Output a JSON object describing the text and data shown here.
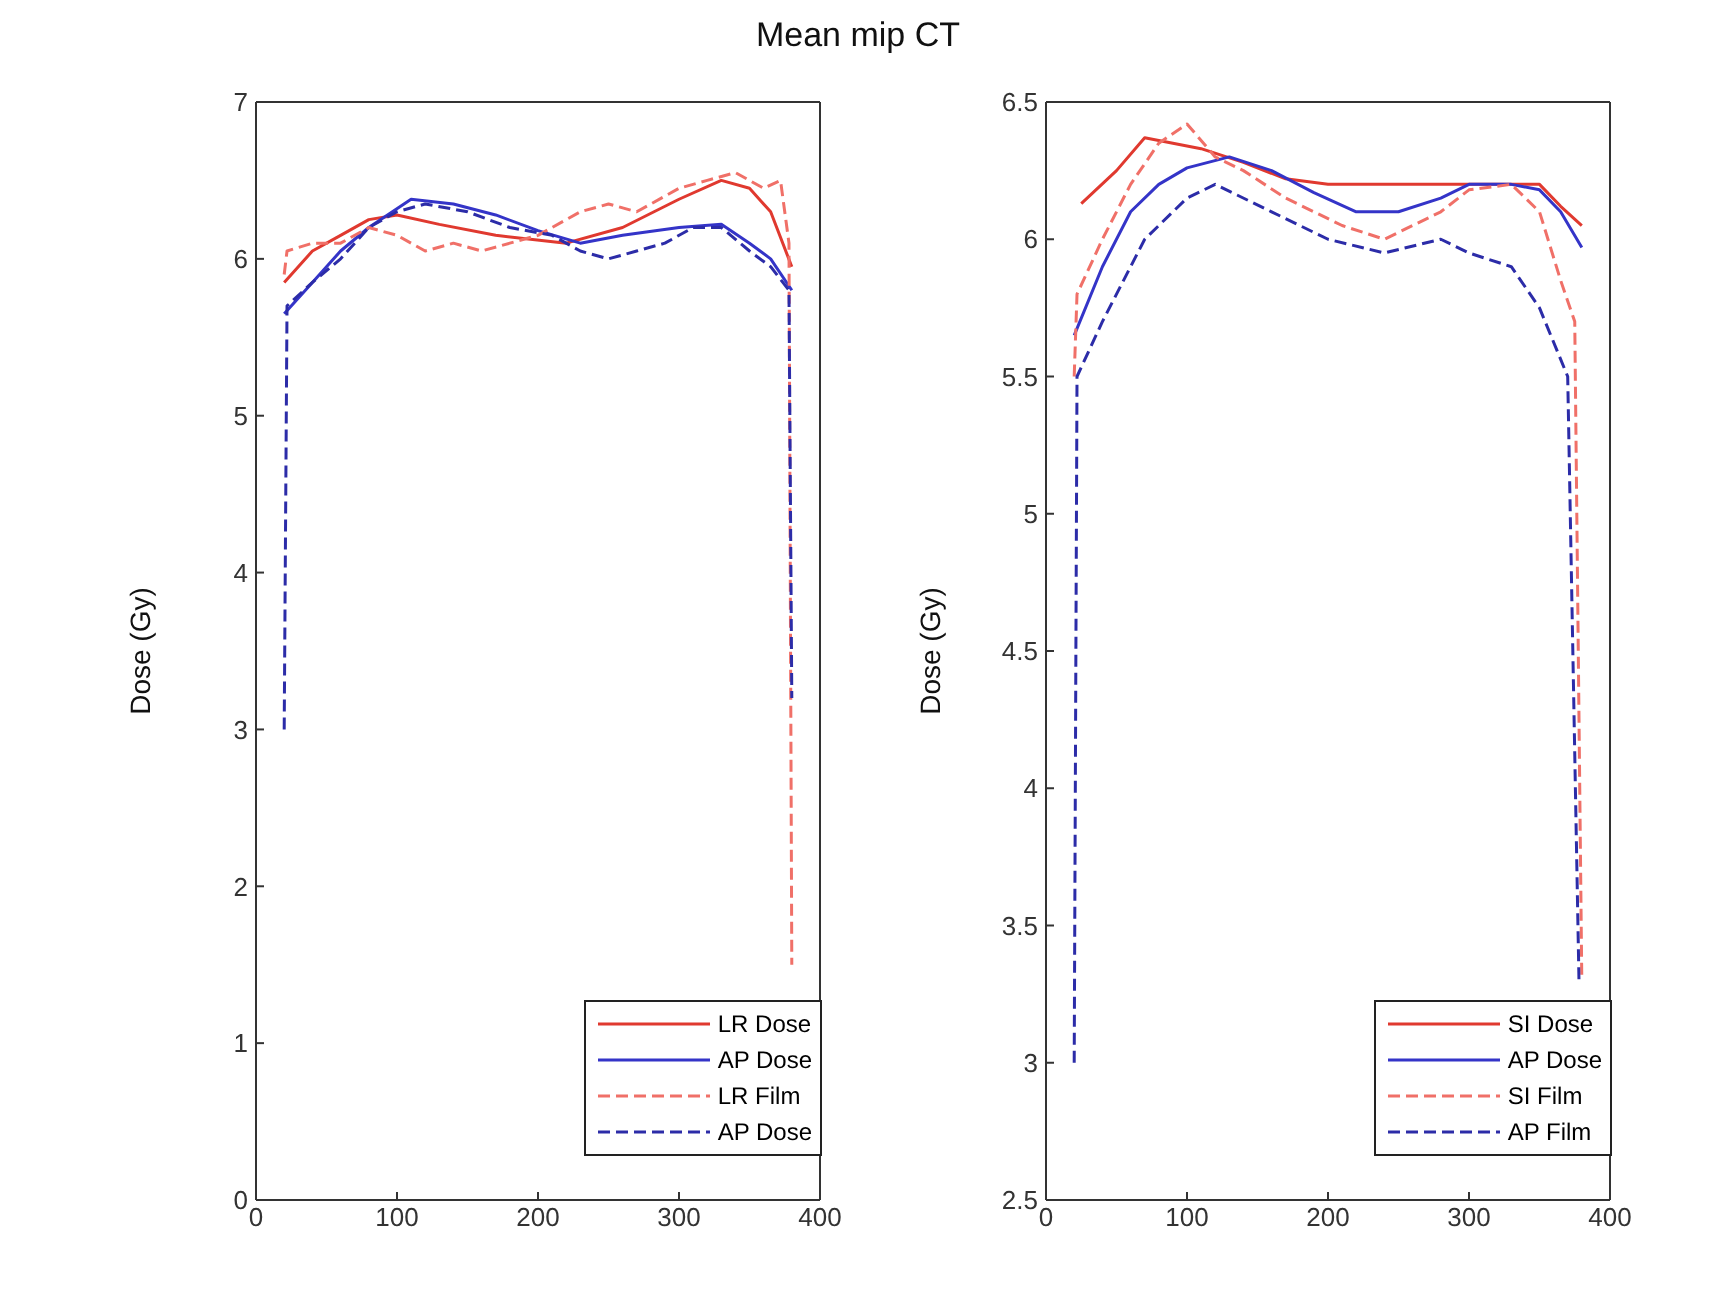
{
  "chart_data": [
    {
      "type": "line",
      "title": "Mean mip CT",
      "ylabel": "Dose (Gy)",
      "xlim": [
        0,
        400
      ],
      "xticks": [
        0,
        100,
        200,
        300,
        400
      ],
      "ylim": [
        0,
        7
      ],
      "yticks": [
        0,
        1,
        2,
        3,
        4,
        5,
        6,
        7
      ],
      "legend": "bottom right",
      "marker": "none",
      "series": [
        {
          "name": "LR Dose",
          "color": "#e0392f",
          "line_style": "solid",
          "x": [
            20,
            40,
            60,
            80,
            100,
            130,
            170,
            220,
            260,
            300,
            330,
            350,
            365,
            380
          ],
          "values": [
            5.85,
            6.05,
            6.15,
            6.25,
            6.28,
            6.22,
            6.15,
            6.1,
            6.2,
            6.38,
            6.5,
            6.45,
            6.3,
            5.95
          ]
        },
        {
          "name": "AP Dose",
          "color": "#3434c8",
          "line_style": "solid",
          "x": [
            20,
            40,
            60,
            80,
            110,
            140,
            170,
            200,
            230,
            260,
            300,
            330,
            350,
            365,
            380
          ],
          "values": [
            5.65,
            5.85,
            6.05,
            6.2,
            6.38,
            6.35,
            6.28,
            6.18,
            6.1,
            6.15,
            6.2,
            6.22,
            6.1,
            6.0,
            5.8
          ]
        },
        {
          "name": "LR Film",
          "color": "#f07068",
          "line_style": "dashed",
          "x": [
            20,
            22,
            40,
            60,
            80,
            100,
            120,
            140,
            160,
            180,
            200,
            230,
            250,
            270,
            300,
            320,
            340,
            360,
            372,
            378,
            380
          ],
          "values": [
            5.9,
            6.05,
            6.1,
            6.1,
            6.2,
            6.15,
            6.05,
            6.1,
            6.05,
            6.1,
            6.15,
            6.3,
            6.35,
            6.3,
            6.45,
            6.5,
            6.55,
            6.45,
            6.5,
            6.1,
            1.5
          ]
        },
        {
          "name": "AP Dose",
          "color": "#2c2ca8",
          "line_style": "dashed",
          "x": [
            20,
            22,
            40,
            60,
            80,
            100,
            120,
            150,
            180,
            210,
            230,
            250,
            270,
            290,
            310,
            330,
            350,
            365,
            378,
            380
          ],
          "values": [
            3.0,
            5.7,
            5.85,
            6.0,
            6.2,
            6.3,
            6.35,
            6.3,
            6.2,
            6.15,
            6.05,
            6.0,
            6.05,
            6.1,
            6.2,
            6.2,
            6.05,
            5.95,
            5.8,
            3.2
          ]
        }
      ]
    },
    {
      "type": "line",
      "ylabel": "Dose (Gy)",
      "xlim": [
        0,
        400
      ],
      "xticks": [
        0,
        100,
        200,
        300,
        400
      ],
      "ylim": [
        2.5,
        6.5
      ],
      "yticks": [
        2.5,
        3,
        3.5,
        4,
        4.5,
        5,
        5.5,
        6,
        6.5
      ],
      "legend": "bottom right",
      "marker": "none",
      "series": [
        {
          "name": "SI Dose",
          "color": "#e0392f",
          "line_style": "solid",
          "x": [
            25,
            50,
            70,
            90,
            110,
            140,
            170,
            200,
            250,
            300,
            330,
            350,
            365,
            380
          ],
          "values": [
            6.13,
            6.25,
            6.37,
            6.35,
            6.33,
            6.28,
            6.22,
            6.2,
            6.2,
            6.2,
            6.2,
            6.2,
            6.12,
            6.05
          ]
        },
        {
          "name": "AP Dose",
          "color": "#3434c8",
          "line_style": "solid",
          "x": [
            20,
            40,
            60,
            80,
            100,
            130,
            160,
            190,
            220,
            250,
            280,
            300,
            330,
            350,
            365,
            380
          ],
          "values": [
            5.65,
            5.9,
            6.1,
            6.2,
            6.26,
            6.3,
            6.25,
            6.17,
            6.1,
            6.1,
            6.15,
            6.2,
            6.2,
            6.18,
            6.1,
            5.97
          ]
        },
        {
          "name": "SI Film",
          "color": "#f07068",
          "line_style": "dashed",
          "x": [
            20,
            22,
            40,
            60,
            80,
            100,
            120,
            140,
            170,
            210,
            240,
            280,
            300,
            330,
            350,
            365,
            375,
            380
          ],
          "values": [
            5.5,
            5.8,
            6.0,
            6.2,
            6.35,
            6.42,
            6.3,
            6.25,
            6.15,
            6.05,
            6.0,
            6.1,
            6.18,
            6.2,
            6.1,
            5.85,
            5.7,
            3.3
          ]
        },
        {
          "name": "AP Film",
          "color": "#2c2ca8",
          "line_style": "dashed",
          "x": [
            20,
            22,
            40,
            70,
            100,
            120,
            160,
            200,
            240,
            280,
            300,
            330,
            350,
            370,
            378
          ],
          "values": [
            3.0,
            5.5,
            5.7,
            6.0,
            6.15,
            6.2,
            6.1,
            6.0,
            5.95,
            6.0,
            5.95,
            5.9,
            5.75,
            5.5,
            3.3
          ]
        }
      ]
    }
  ]
}
